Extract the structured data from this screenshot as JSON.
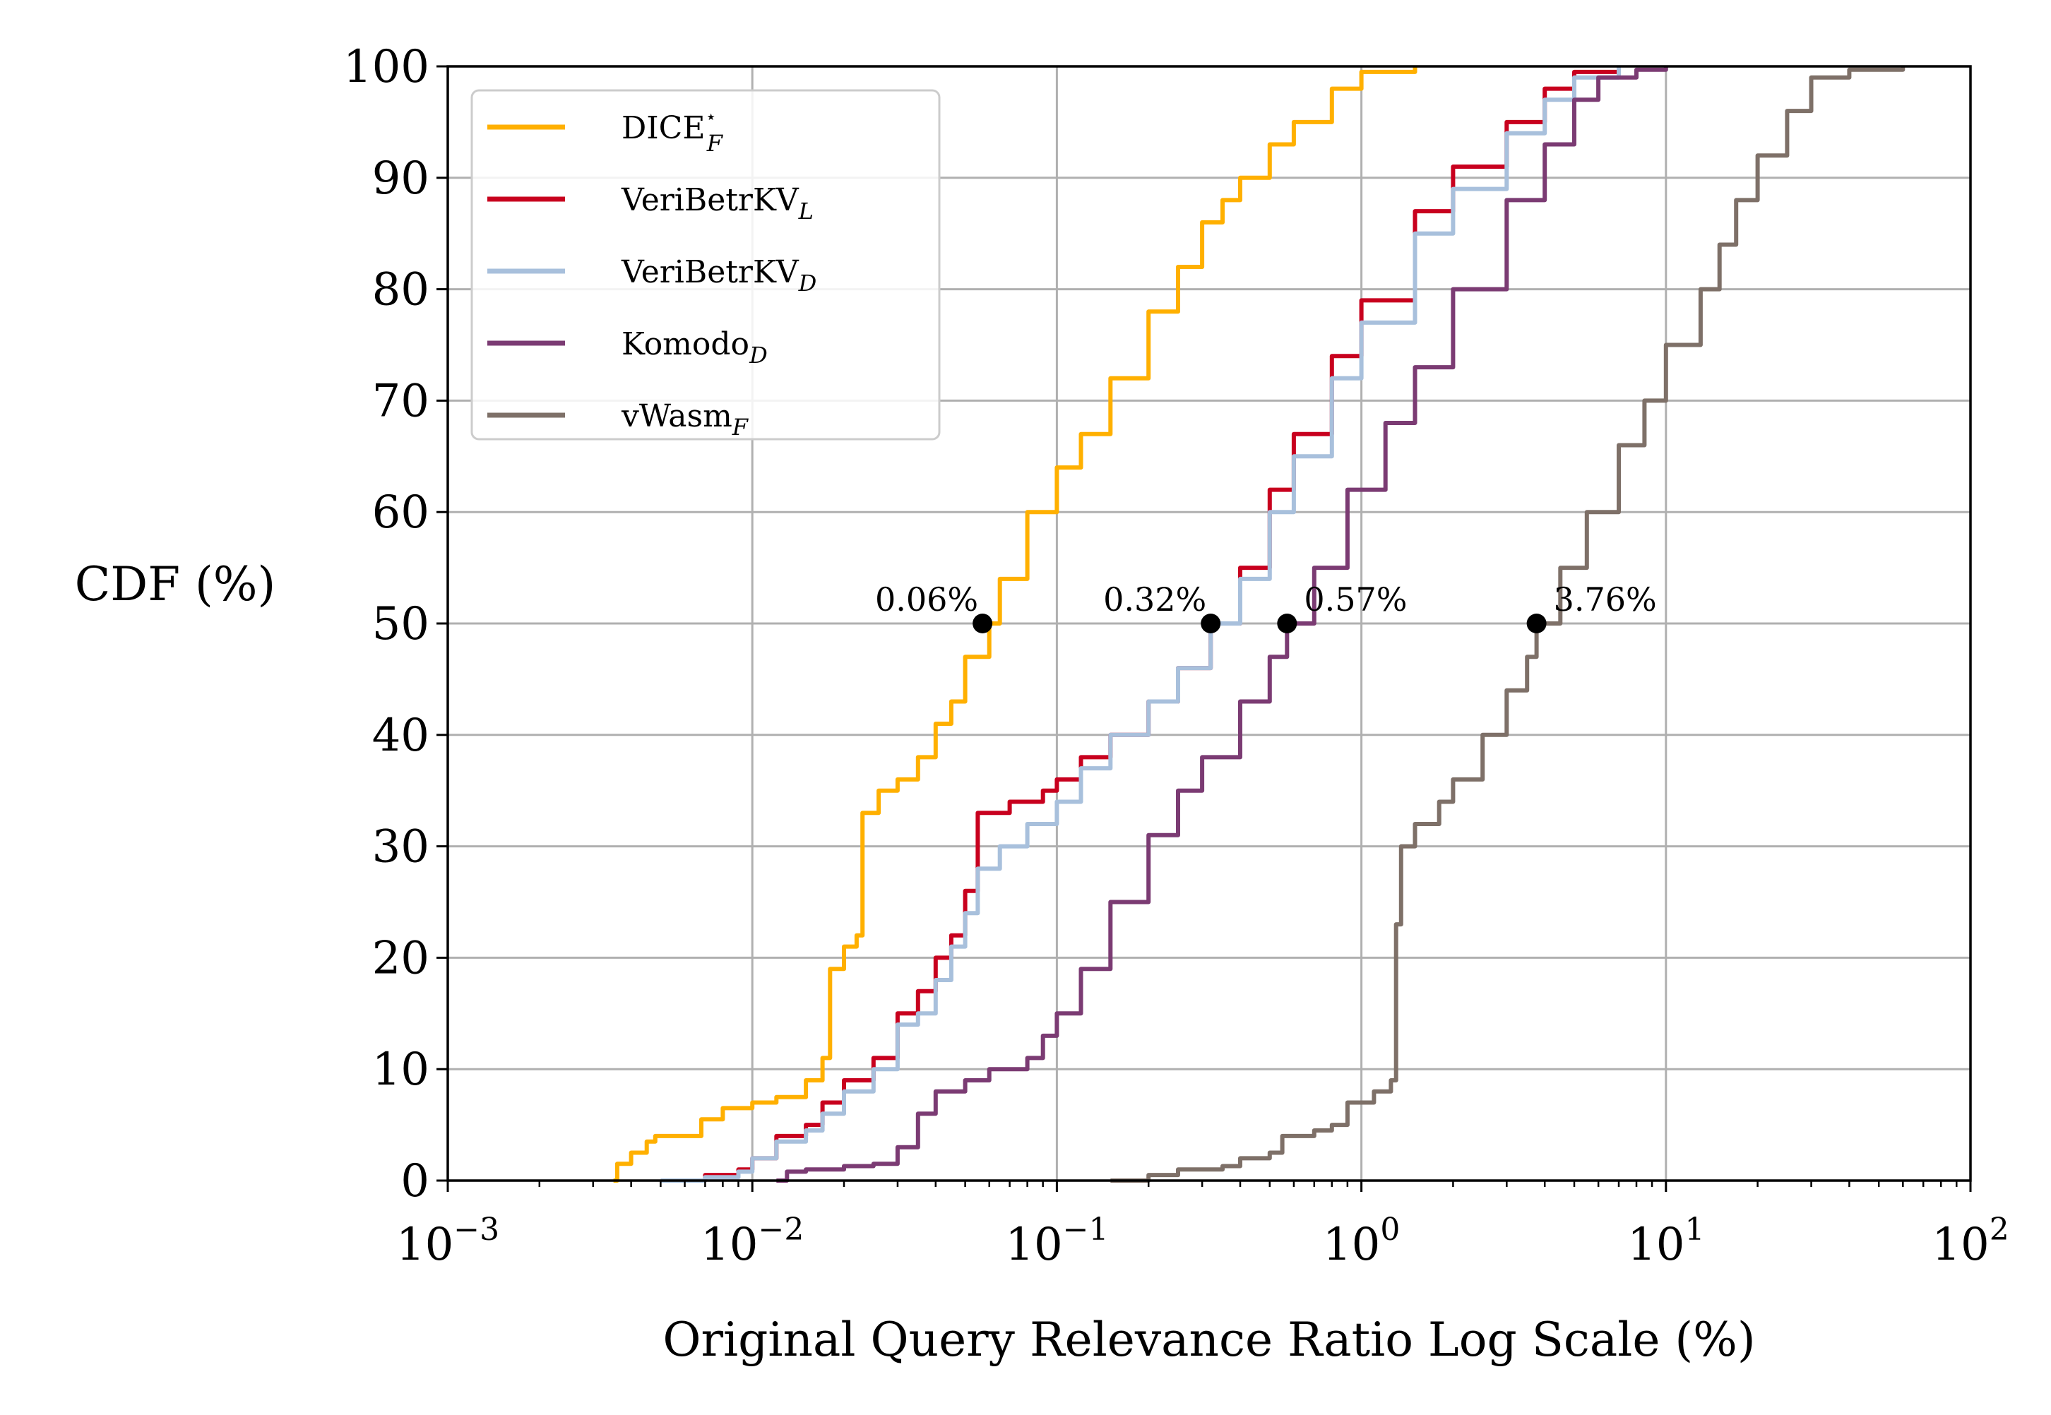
{
  "chart_data": {
    "type": "line",
    "xlabel": "Original Query Relevance Ratio Log Scale (%)",
    "ylabel": "CDF (%)",
    "xscale": "log",
    "xlim": [
      0.001,
      100
    ],
    "ylim": [
      0,
      100
    ],
    "x_ticks": [
      {
        "value": 0.001,
        "base": "10",
        "exp": "−3"
      },
      {
        "value": 0.01,
        "base": "10",
        "exp": "−2"
      },
      {
        "value": 0.1,
        "base": "10",
        "exp": "−1"
      },
      {
        "value": 1,
        "base": "10",
        "exp": "0"
      },
      {
        "value": 10,
        "base": "10",
        "exp": "1"
      },
      {
        "value": 100,
        "base": "10",
        "exp": "2"
      }
    ],
    "y_ticks": [
      0,
      10,
      20,
      30,
      40,
      50,
      60,
      70,
      80,
      90,
      100
    ],
    "grid": true,
    "legend_position": "top-left",
    "series": [
      {
        "name": "DICE",
        "name_sup": "⋆",
        "name_sub": "F",
        "color": "#ffb000",
        "points": [
          [
            0.0035,
            0
          ],
          [
            0.0036,
            1.5
          ],
          [
            0.004,
            2.5
          ],
          [
            0.0045,
            3.5
          ],
          [
            0.0048,
            4
          ],
          [
            0.0065,
            4
          ],
          [
            0.0068,
            5.5
          ],
          [
            0.008,
            6.5
          ],
          [
            0.01,
            7
          ],
          [
            0.012,
            7.5
          ],
          [
            0.015,
            9
          ],
          [
            0.017,
            11
          ],
          [
            0.018,
            19
          ],
          [
            0.02,
            21
          ],
          [
            0.022,
            22
          ],
          [
            0.023,
            33
          ],
          [
            0.026,
            35
          ],
          [
            0.03,
            36
          ],
          [
            0.035,
            38
          ],
          [
            0.04,
            41
          ],
          [
            0.045,
            43
          ],
          [
            0.05,
            47
          ],
          [
            0.06,
            50
          ],
          [
            0.065,
            54
          ],
          [
            0.08,
            60
          ],
          [
            0.1,
            64
          ],
          [
            0.12,
            67
          ],
          [
            0.15,
            72
          ],
          [
            0.2,
            78
          ],
          [
            0.25,
            82
          ],
          [
            0.3,
            86
          ],
          [
            0.35,
            88
          ],
          [
            0.4,
            90
          ],
          [
            0.5,
            93
          ],
          [
            0.6,
            95
          ],
          [
            0.8,
            98
          ],
          [
            1.0,
            99.5
          ],
          [
            1.5,
            100
          ]
        ]
      },
      {
        "name": "VeriBetrKV",
        "name_sub": "L",
        "color": "#c8001e",
        "points": [
          [
            0.0055,
            0
          ],
          [
            0.007,
            0.5
          ],
          [
            0.009,
            1
          ],
          [
            0.01,
            2
          ],
          [
            0.012,
            4
          ],
          [
            0.015,
            5
          ],
          [
            0.017,
            7
          ],
          [
            0.02,
            9
          ],
          [
            0.025,
            11
          ],
          [
            0.03,
            15
          ],
          [
            0.035,
            17
          ],
          [
            0.04,
            20
          ],
          [
            0.045,
            22
          ],
          [
            0.05,
            26
          ],
          [
            0.055,
            33
          ],
          [
            0.07,
            34
          ],
          [
            0.09,
            35
          ],
          [
            0.1,
            36
          ],
          [
            0.12,
            38
          ],
          [
            0.15,
            40
          ],
          [
            0.2,
            43
          ],
          [
            0.25,
            46
          ],
          [
            0.32,
            50
          ],
          [
            0.4,
            55
          ],
          [
            0.5,
            62
          ],
          [
            0.6,
            67
          ],
          [
            0.8,
            74
          ],
          [
            1.0,
            79
          ],
          [
            1.5,
            87
          ],
          [
            2.0,
            91
          ],
          [
            3.0,
            95
          ],
          [
            4.0,
            98
          ],
          [
            5.0,
            99.5
          ],
          [
            7.0,
            100
          ]
        ]
      },
      {
        "name": "VeriBetrKV",
        "name_sub": "D",
        "color": "#a8c0dc",
        "points": [
          [
            0.005,
            0
          ],
          [
            0.007,
            0.3
          ],
          [
            0.009,
            0.8
          ],
          [
            0.01,
            2
          ],
          [
            0.012,
            3.5
          ],
          [
            0.015,
            4.5
          ],
          [
            0.017,
            6
          ],
          [
            0.02,
            8
          ],
          [
            0.025,
            10
          ],
          [
            0.03,
            14
          ],
          [
            0.035,
            15
          ],
          [
            0.04,
            18
          ],
          [
            0.045,
            21
          ],
          [
            0.05,
            24
          ],
          [
            0.055,
            28
          ],
          [
            0.065,
            30
          ],
          [
            0.08,
            32
          ],
          [
            0.1,
            34
          ],
          [
            0.12,
            37
          ],
          [
            0.15,
            40
          ],
          [
            0.2,
            43
          ],
          [
            0.25,
            46
          ],
          [
            0.32,
            50
          ],
          [
            0.4,
            54
          ],
          [
            0.5,
            60
          ],
          [
            0.6,
            65
          ],
          [
            0.8,
            72
          ],
          [
            1.0,
            77
          ],
          [
            1.5,
            85
          ],
          [
            2.0,
            89
          ],
          [
            3.0,
            94
          ],
          [
            4.0,
            97
          ],
          [
            5.0,
            99
          ],
          [
            7.0,
            100
          ]
        ]
      },
      {
        "name": "Komodo",
        "name_sub": "D",
        "color": "#7b3b73",
        "points": [
          [
            0.012,
            0
          ],
          [
            0.013,
            0.8
          ],
          [
            0.015,
            1
          ],
          [
            0.02,
            1.3
          ],
          [
            0.025,
            1.5
          ],
          [
            0.03,
            3
          ],
          [
            0.035,
            6
          ],
          [
            0.04,
            8
          ],
          [
            0.05,
            9
          ],
          [
            0.06,
            10
          ],
          [
            0.08,
            11
          ],
          [
            0.09,
            13
          ],
          [
            0.1,
            15
          ],
          [
            0.12,
            19
          ],
          [
            0.15,
            25
          ],
          [
            0.2,
            31
          ],
          [
            0.25,
            35
          ],
          [
            0.3,
            38
          ],
          [
            0.4,
            43
          ],
          [
            0.5,
            47
          ],
          [
            0.57,
            50
          ],
          [
            0.7,
            55
          ],
          [
            0.9,
            62
          ],
          [
            1.2,
            68
          ],
          [
            1.5,
            73
          ],
          [
            2.0,
            80
          ],
          [
            3.0,
            88
          ],
          [
            4.0,
            93
          ],
          [
            5.0,
            97
          ],
          [
            6.0,
            99
          ],
          [
            8.0,
            99.7
          ],
          [
            10.0,
            100
          ]
        ]
      },
      {
        "name": "vWasm",
        "name_sub": "F",
        "color": "#7e7068",
        "points": [
          [
            0.15,
            0
          ],
          [
            0.2,
            0.5
          ],
          [
            0.25,
            1
          ],
          [
            0.35,
            1.3
          ],
          [
            0.4,
            2
          ],
          [
            0.5,
            2.5
          ],
          [
            0.55,
            4
          ],
          [
            0.7,
            4.5
          ],
          [
            0.8,
            5
          ],
          [
            0.9,
            7
          ],
          [
            1.1,
            8
          ],
          [
            1.25,
            9
          ],
          [
            1.3,
            23
          ],
          [
            1.35,
            30
          ],
          [
            1.5,
            32
          ],
          [
            1.8,
            34
          ],
          [
            2.0,
            36
          ],
          [
            2.5,
            40
          ],
          [
            3.0,
            44
          ],
          [
            3.5,
            47
          ],
          [
            3.76,
            50
          ],
          [
            4.5,
            55
          ],
          [
            5.5,
            60
          ],
          [
            7.0,
            66
          ],
          [
            8.5,
            70
          ],
          [
            10.0,
            75
          ],
          [
            13.0,
            80
          ],
          [
            15.0,
            84
          ],
          [
            17.0,
            88
          ],
          [
            20.0,
            92
          ],
          [
            25.0,
            96
          ],
          [
            30.0,
            99
          ],
          [
            40.0,
            99.7
          ],
          [
            60.0,
            100
          ]
        ]
      }
    ],
    "annotations": [
      {
        "x": 0.057,
        "y": 50,
        "label": "0.06%",
        "side": "left"
      },
      {
        "x": 0.32,
        "y": 50,
        "label": "0.32%",
        "side": "left"
      },
      {
        "x": 0.57,
        "y": 50,
        "label": "0.57%",
        "side": "right"
      },
      {
        "x": 3.76,
        "y": 50,
        "label": "3.76%",
        "side": "right"
      }
    ]
  }
}
